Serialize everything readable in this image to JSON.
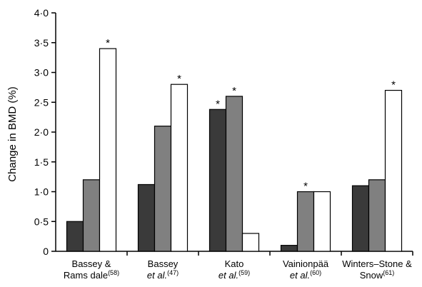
{
  "chart_data": {
    "type": "bar",
    "ylabel": "Change in BMD (%)",
    "xlabel": "",
    "ylim": [
      0,
      4.0
    ],
    "yticks": [
      "0",
      "0·5",
      "1·0",
      "1·5",
      "2·0",
      "2·5",
      "3·0",
      "3·5",
      "4·0"
    ],
    "ytick_values": [
      0,
      0.5,
      1.0,
      1.5,
      2.0,
      2.5,
      3.0,
      3.5,
      4.0
    ],
    "grid": false,
    "legend": "none",
    "categories": [
      {
        "line1": "Bassey &",
        "line2": "Rams dale",
        "ref": "(58)",
        "line2_italic": false
      },
      {
        "line1": "Bassey",
        "line2": "et al.",
        "ref": "(47)",
        "line2_italic": true
      },
      {
        "line1": "Kato",
        "line2": "et al.",
        "ref": "(59)",
        "line2_italic": true
      },
      {
        "line1": "Vainionpää",
        "line2": "et al.",
        "ref": "(60)",
        "line2_italic": true
      },
      {
        "line1": "Winters–Stone &",
        "line2": "Snow",
        "ref": "(61)",
        "line2_italic": false
      }
    ],
    "series": [
      {
        "values": [
          0.5,
          1.12,
          2.38,
          0.1,
          1.1
        ],
        "color": "#3a3a3a",
        "significant": [
          false,
          false,
          true,
          false,
          false
        ]
      },
      {
        "values": [
          1.2,
          2.1,
          2.6,
          1.0,
          1.2
        ],
        "color": "#808080",
        "significant": [
          false,
          false,
          true,
          true,
          false
        ]
      },
      {
        "values": [
          3.4,
          2.8,
          0.3,
          1.0,
          2.7
        ],
        "color": "#ffffff",
        "significant": [
          true,
          true,
          false,
          false,
          true
        ]
      }
    ],
    "significance_marker": "*"
  }
}
